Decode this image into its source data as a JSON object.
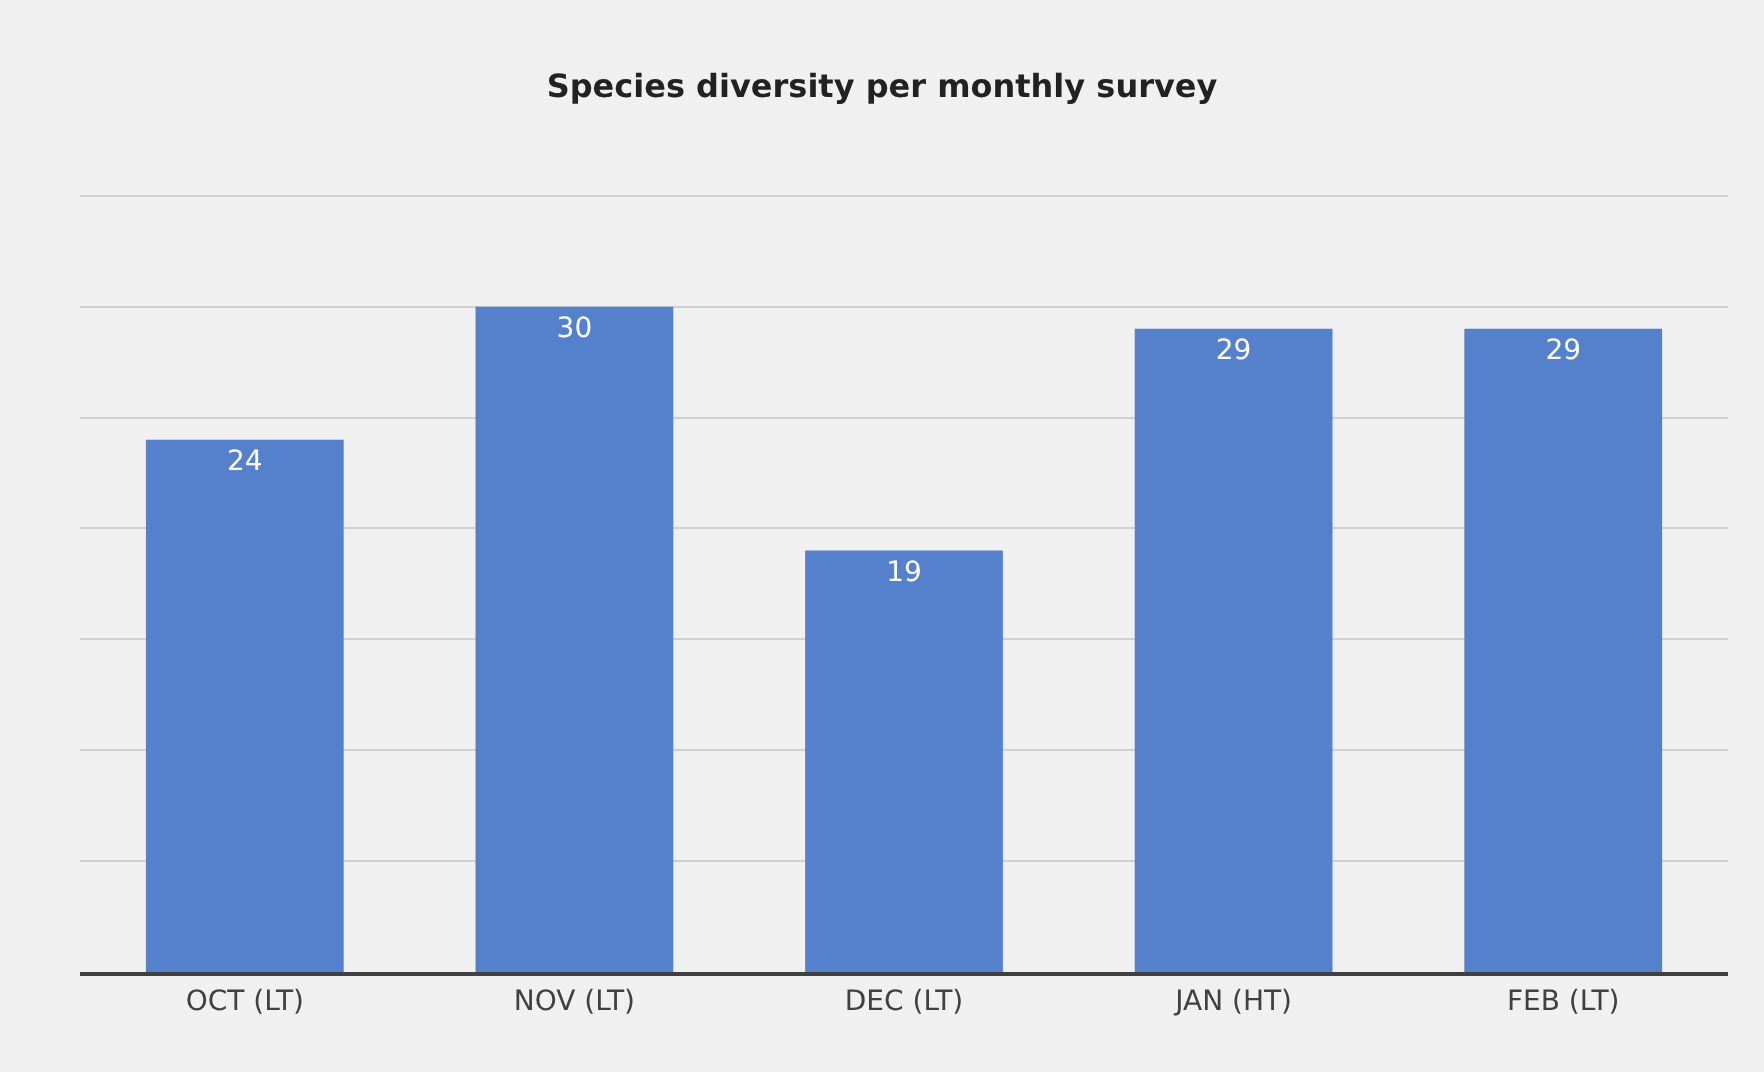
{
  "chart_data": {
    "type": "bar",
    "title": "Species diversity per monthly survey",
    "categories": [
      "OCT (LT)",
      "NOV (LT)",
      "DEC (LT)",
      "JAN (HT)",
      "FEB (LT)"
    ],
    "values": [
      24,
      30,
      19,
      29,
      29
    ],
    "color": "#5580cc",
    "yticks": [
      {
        "value": 0,
        "label": null
      },
      {
        "value": 5,
        "label": null
      },
      {
        "value": 10,
        "label": null
      },
      {
        "value": 15,
        "label": null
      },
      {
        "value": 20,
        "label": null
      },
      {
        "value": 25,
        "label": null
      },
      {
        "value": 30,
        "label": null
      },
      {
        "value": 35,
        "label": null
      }
    ],
    "grid": "y",
    "data_labels": true,
    "legend": false
  }
}
